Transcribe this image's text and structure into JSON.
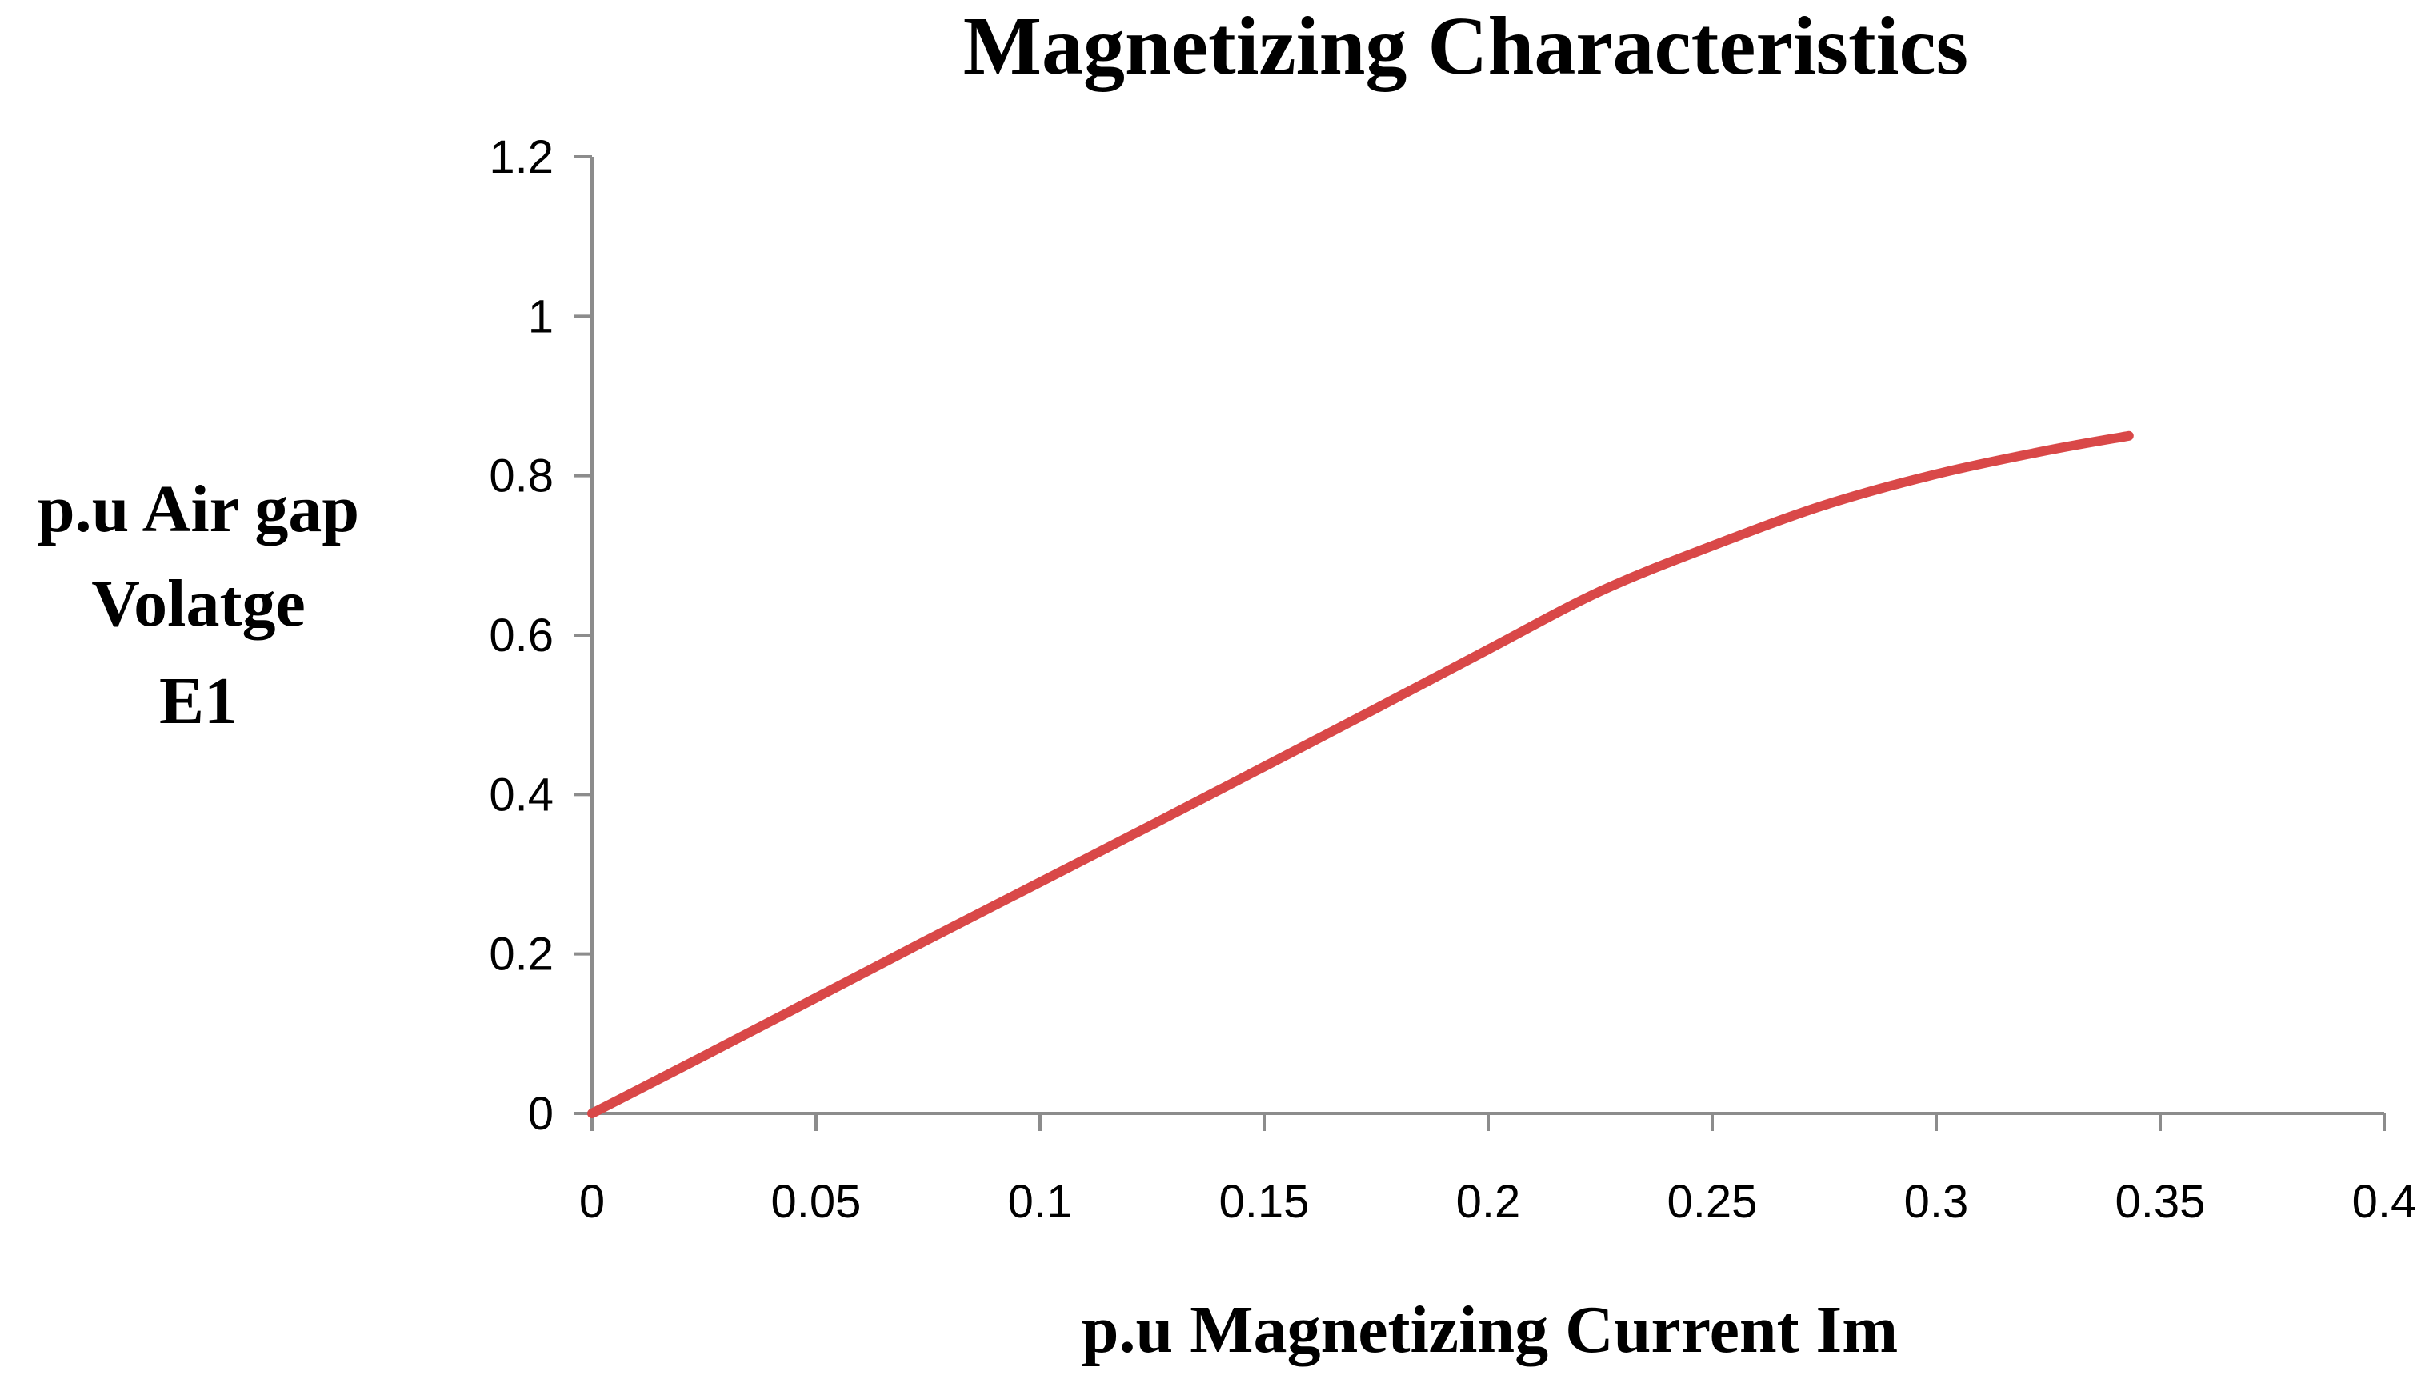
{
  "chart_data": {
    "type": "line",
    "title": "Magnetizing Characteristics",
    "xlabel": "p.u Magnetizing Current Im",
    "ylabel_lines": [
      "p.u Air gap",
      "Volatge",
      "E1"
    ],
    "xlim": [
      0,
      0.4
    ],
    "ylim": [
      0,
      1.2
    ],
    "x_ticks": [
      0,
      0.05,
      0.1,
      0.15,
      0.2,
      0.25,
      0.3,
      0.35,
      0.4
    ],
    "x_tick_labels": [
      "0",
      "0.05",
      "0.1",
      "0.15",
      "0.2",
      "0.25",
      "0.3",
      "0.35",
      "0.4"
    ],
    "y_ticks": [
      0,
      0.2,
      0.4,
      0.6,
      0.8,
      1,
      1.2
    ],
    "y_tick_labels": [
      "0",
      "0.2",
      "0.4",
      "0.6",
      "0.8",
      "1",
      "1.2"
    ],
    "grid": false,
    "legend": "none",
    "series": [
      {
        "color": "#d94848",
        "x": [
          0,
          0.025,
          0.05,
          0.075,
          0.1,
          0.125,
          0.15,
          0.175,
          0.2,
          0.225,
          0.25,
          0.275,
          0.3,
          0.325,
          0.343
        ],
        "y": [
          0,
          0.072,
          0.145,
          0.218,
          0.29,
          0.362,
          0.435,
          0.508,
          0.582,
          0.655,
          0.712,
          0.763,
          0.802,
          0.832,
          0.85
        ]
      }
    ]
  }
}
